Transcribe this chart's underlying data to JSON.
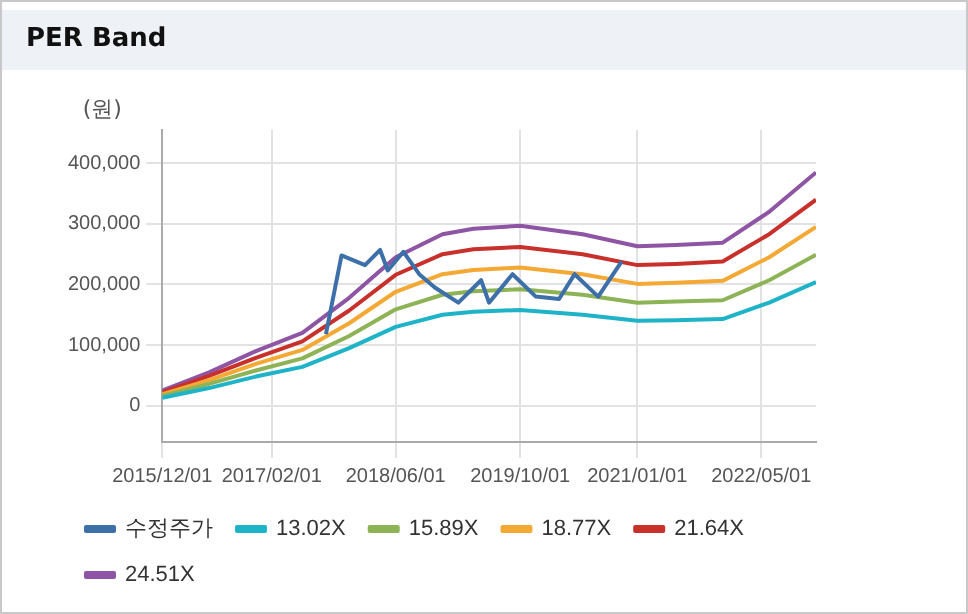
{
  "chart_data": {
    "type": "line",
    "title": "PER Band",
    "ylabel": "(원)",
    "xlim": [
      "2015-12-01",
      "2022-12-01"
    ],
    "xticks": [
      {
        "value": "2015-12-01",
        "label": "2015/12/01"
      },
      {
        "value": "2017-02-01",
        "label": "2017/02/01"
      },
      {
        "value": "2018-06-01",
        "label": "2018/06/01"
      },
      {
        "value": "2019-10-01",
        "label": "2019/10/01"
      },
      {
        "value": "2021-01-01",
        "label": "2021/01/01"
      },
      {
        "value": "2022-05-01",
        "label": "2022/05/01"
      }
    ],
    "ylim": [
      -60000,
      455000
    ],
    "yticks": [
      {
        "value": 0,
        "label": "0"
      },
      {
        "value": 100000,
        "label": "100,000"
      },
      {
        "value": 200000,
        "label": "200,000"
      },
      {
        "value": 300000,
        "label": "300,000"
      },
      {
        "value": 400000,
        "label": "400,000"
      }
    ],
    "grid": true,
    "legend": "bottom",
    "marker": "none",
    "line_style": "solid",
    "series": [
      {
        "name": "수정주가",
        "color": "#3d6fa8",
        "x": [
          "2017-09",
          "2017-11",
          "2018-02",
          "2018-04",
          "2018-05",
          "2018-07",
          "2018-09",
          "2018-11",
          "2019-02",
          "2019-05",
          "2019-06",
          "2019-09",
          "2019-12",
          "2020-03",
          "2020-05",
          "2020-08",
          "2020-11"
        ],
        "values": [
          118000,
          248000,
          232000,
          257000,
          223000,
          254000,
          217000,
          195000,
          170000,
          207000,
          170000,
          217000,
          180000,
          176000,
          217000,
          180000,
          238000
        ]
      },
      {
        "name": "13.02X",
        "color": "#1fb3c8",
        "x": [
          "2015-12",
          "2016-06",
          "2016-12",
          "2017-06",
          "2017-12",
          "2018-06",
          "2018-12",
          "2019-04",
          "2019-10",
          "2020-06",
          "2021-01",
          "2021-06",
          "2021-12",
          "2022-06",
          "2022-12"
        ],
        "values": [
          13000,
          29000,
          48000,
          64000,
          95000,
          130000,
          150000,
          155000,
          158000,
          150000,
          140000,
          141000,
          143000,
          170000,
          204000
        ]
      },
      {
        "name": "15.89X",
        "color": "#8db356",
        "x": [
          "2015-12",
          "2016-06",
          "2016-12",
          "2017-06",
          "2017-12",
          "2018-06",
          "2018-12",
          "2019-04",
          "2019-10",
          "2020-06",
          "2021-01",
          "2021-06",
          "2021-12",
          "2022-06",
          "2022-12"
        ],
        "values": [
          16000,
          36000,
          58000,
          78000,
          115000,
          159000,
          183000,
          189000,
          192000,
          183000,
          170000,
          172000,
          174000,
          207000,
          249000
        ]
      },
      {
        "name": "18.77X",
        "color": "#f4a935",
        "x": [
          "2015-12",
          "2016-06",
          "2016-12",
          "2017-06",
          "2017-12",
          "2018-06",
          "2018-12",
          "2019-04",
          "2019-10",
          "2020-06",
          "2021-01",
          "2021-06",
          "2021-12",
          "2022-06",
          "2022-12"
        ],
        "values": [
          19000,
          42000,
          69000,
          92000,
          136000,
          188000,
          217000,
          224000,
          228000,
          217000,
          201000,
          203000,
          206000,
          245000,
          295000
        ]
      },
      {
        "name": "21.64X",
        "color": "#c8302b",
        "x": [
          "2015-12",
          "2016-06",
          "2016-12",
          "2017-06",
          "2017-12",
          "2018-06",
          "2018-12",
          "2019-04",
          "2019-10",
          "2020-06",
          "2021-01",
          "2021-06",
          "2021-12",
          "2022-06",
          "2022-12"
        ],
        "values": [
          22000,
          49000,
          79000,
          106000,
          157000,
          216000,
          250000,
          258000,
          262000,
          250000,
          232000,
          234000,
          238000,
          283000,
          340000
        ]
      },
      {
        "name": "24.51X",
        "color": "#8e55a5",
        "x": [
          "2015-12",
          "2016-06",
          "2016-12",
          "2017-06",
          "2017-12",
          "2018-06",
          "2018-12",
          "2019-04",
          "2019-10",
          "2020-06",
          "2021-01",
          "2021-06",
          "2021-12",
          "2022-06",
          "2022-12"
        ],
        "values": [
          25000,
          55000,
          90000,
          120000,
          178000,
          245000,
          283000,
          292000,
          297000,
          283000,
          263000,
          265000,
          269000,
          320000,
          385000
        ]
      }
    ]
  }
}
